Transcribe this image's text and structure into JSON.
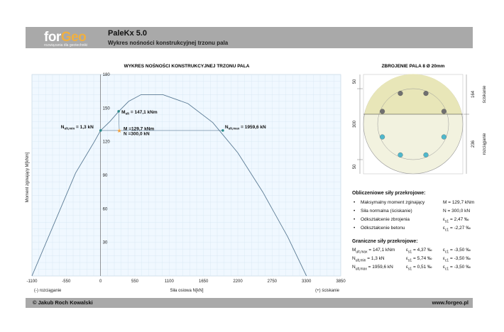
{
  "header": {
    "logo_for": "for",
    "logo_geo": "Geo",
    "logo_tagline": "rozwiązania dla geotechniki",
    "app_title": "PaleKx 5.0",
    "app_subtitle": "Wykres nośności konstrukcyjnej trzonu pala"
  },
  "footer": {
    "author": "© Jakub Roch Kowalski",
    "website": "www.forgeo.pl"
  },
  "chart_data": {
    "type": "line",
    "title": "WYKRES NOŚNOŚCI KONSTRUKCYJNEJ TRZONU PALA",
    "xlabel": "Siła osiowa N[kN]",
    "ylabel": "Moment zginający M[kNm]",
    "xlim": [
      -1100,
      3850
    ],
    "ylim": [
      0,
      180
    ],
    "x_ticks": [
      "-1100",
      "-550",
      "0",
      "550",
      "1100",
      "1650",
      "2200",
      "2750",
      "3300",
      "3850"
    ],
    "y_ticks": [
      "30",
      "60",
      "90",
      "120",
      "150",
      "180"
    ],
    "x_left_note": "(-) rozciąganie",
    "x_right_note": "(+) ściskanie",
    "grid": true,
    "series": [
      {
        "x": [
          -1100,
          -400,
          -100,
          0,
          150,
          290,
          450,
          650,
          1000,
          1400,
          1800,
          2200,
          2600,
          3000,
          3300
        ],
        "y": [
          0,
          92,
          120,
          130,
          138,
          147,
          156,
          162,
          162,
          154,
          137,
          110,
          75,
          35,
          0
        ]
      }
    ],
    "points": [
      {
        "label_main": "N",
        "label_sub": "ult,min",
        "label_rest": " = 1,3 kN",
        "x": 1.3,
        "y": 130
      },
      {
        "label_main": "M",
        "label_sub": "ult",
        "label_rest": " = 147,1 kNm",
        "x": 290,
        "y": 147.1
      },
      {
        "label_main": "N",
        "label_sub": "ult,max",
        "label_rest": " = 1959,6 kN",
        "x": 1959.6,
        "y": 130
      }
    ],
    "design_point": {
      "x": 300,
      "y": 129.7,
      "label_m": "M =129,7 kNm",
      "label_n": "N =300,0 kN"
    }
  },
  "section": {
    "title": "ZBROJENIE PALA 8 Ø 20mm",
    "dim_left": [
      "50",
      "300",
      "50"
    ],
    "dim_right": [
      "164",
      "236"
    ],
    "label_compression": "ściskanie",
    "label_tension": "rozciąganie"
  },
  "computed": {
    "title": "Obliczeniowe siły przekrojowe:",
    "rows": [
      {
        "label": "Maksymalny moment zginający",
        "value": "M = 129,7 kNm"
      },
      {
        "label": "Siła normalna (ściskanie)",
        "value": "N = 300,0 kN"
      },
      {
        "label": "Odkształcenie zbrojenia",
        "sym": "ε",
        "sub": "s1",
        "value": "= 2,47 ‰"
      },
      {
        "label": "Odkształcenie betonu",
        "sym": "ε",
        "sub": "c1",
        "value": "= -2,27 ‰"
      }
    ]
  },
  "limits": {
    "title": "Graniczne siły przekrojowe:",
    "rows": [
      {
        "main": "M",
        "sub": "ult,max",
        "val": " = 147,1 kNm",
        "es": "= 4,37 ‰",
        "ec": "= -3,50 ‰"
      },
      {
        "main": "N",
        "sub": "ult,min",
        "val": " = 1,3 kN",
        "es": "= 5,74 ‰",
        "ec": "= -3,50 ‰"
      },
      {
        "main": "N",
        "sub": "ult,max",
        "val": " = 1959,6 kN",
        "es": "= 0,51 ‰",
        "ec": "= -3,50 ‰"
      }
    ],
    "es_sym": "ε",
    "es_sub": "s1",
    "ec_sym": "ε",
    "ec_sub": "c1"
  }
}
